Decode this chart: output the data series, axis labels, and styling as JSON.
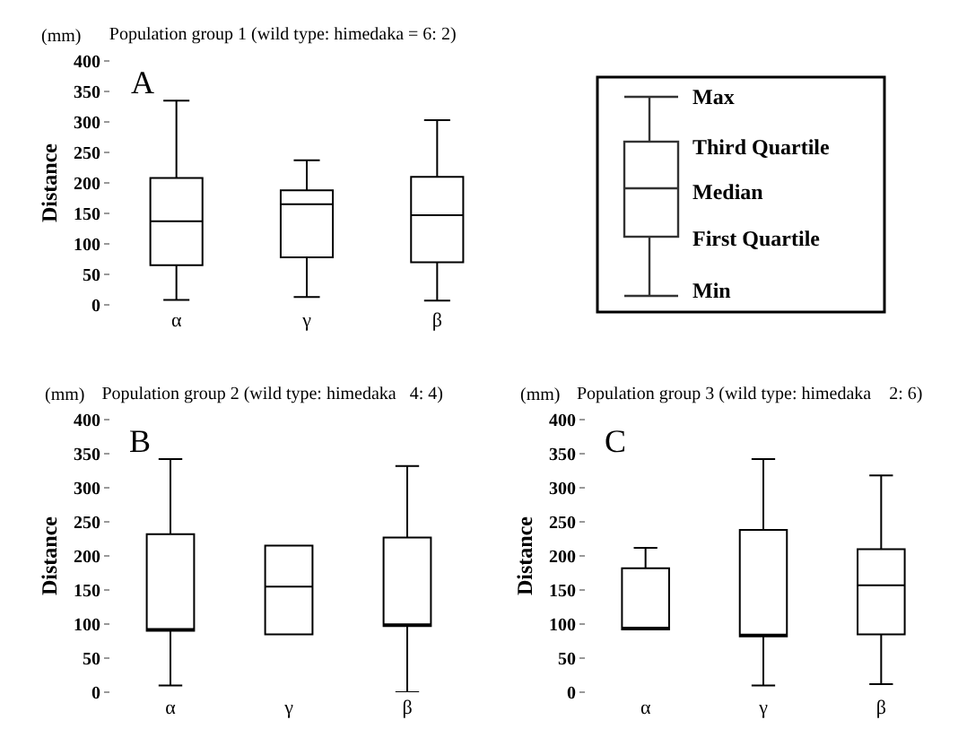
{
  "chart_data": [
    {
      "type": "box",
      "title": "Population group 1 (wild type: himedaka = 6: 2)",
      "ylabel": "Distance",
      "annotations": [
        "(mm)",
        "A"
      ],
      "categories": [
        "α",
        "γ",
        "β"
      ],
      "ylim": [
        0,
        400
      ],
      "yticks": [
        0,
        50,
        100,
        150,
        200,
        250,
        300,
        350,
        400
      ],
      "series": [
        {
          "color": "#000000",
          "boxes": [
            {
              "low": 8,
              "q1": 65,
              "median": 137,
              "q3": 208,
              "high": 335
            },
            {
              "low": 13,
              "q1": 78,
              "median": 165,
              "q3": 188,
              "high": 237
            },
            {
              "low": 7,
              "q1": 70,
              "median": 147,
              "q3": 210,
              "high": 303
            }
          ]
        }
      ]
    },
    {
      "type": "other",
      "annotations": [
        "Max",
        "Third Quartile",
        "Median",
        "First Quartile",
        "Min"
      ]
    },
    {
      "type": "box",
      "title": "Population group 2 (wild type: himedaka   4: 4)",
      "ylabel": "Distance",
      "annotations": [
        "(mm)",
        "B"
      ],
      "categories": [
        "α",
        "γ",
        "β"
      ],
      "ylim": [
        0,
        400
      ],
      "yticks": [
        0,
        50,
        100,
        150,
        200,
        250,
        300,
        350,
        400
      ],
      "series": [
        {
          "color": "#000000",
          "boxes": [
            {
              "low": 10,
              "q1": 90,
              "median": 90,
              "q3": 232,
              "high": 342
            },
            {
              "low": 85,
              "q1": 85,
              "median": 155,
              "q3": 215,
              "high": 215
            },
            {
              "low": 0,
              "q1": 97,
              "median": 97,
              "q3": 227,
              "high": 332
            }
          ]
        }
      ]
    },
    {
      "type": "box",
      "title": "Population group 3 (wild type: himedaka    2: 6)",
      "ylabel": "Distance",
      "annotations": [
        "(mm)",
        "C"
      ],
      "categories": [
        "α",
        "γ",
        "β"
      ],
      "ylim": [
        0,
        400
      ],
      "yticks": [
        0,
        50,
        100,
        150,
        200,
        250,
        300,
        350,
        400
      ],
      "series": [
        {
          "color": "#000000",
          "boxes": [
            {
              "low": 92,
              "q1": 92,
              "median": 92,
              "q3": 182,
              "high": 212
            },
            {
              "low": 10,
              "q1": 82,
              "median": 82,
              "q3": 238,
              "high": 342
            },
            {
              "low": 12,
              "q1": 85,
              "median": 157,
              "q3": 210,
              "high": 318
            }
          ]
        }
      ]
    }
  ]
}
